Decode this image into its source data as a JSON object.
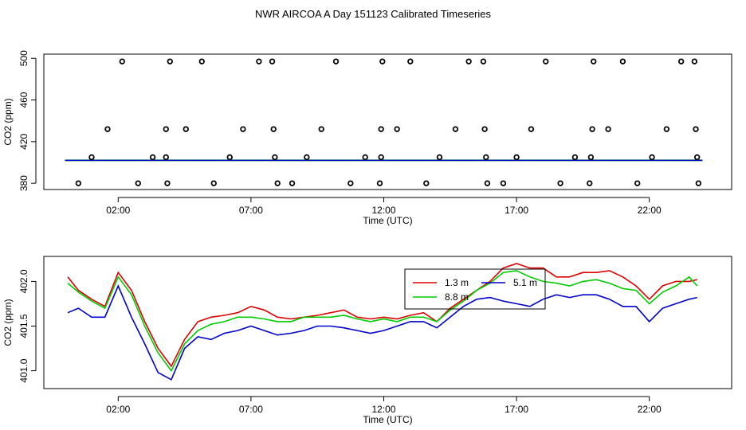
{
  "title": "NWR AIRCOA A  Day 151123  Calibrated Timeseries",
  "colors": {
    "red": "#dd0000",
    "green": "#00cc00",
    "blue": "#0000cc",
    "axis": "#000000"
  },
  "chart_data": [
    {
      "type": "scatter",
      "xlabel": "Time (UTC)",
      "ylabel": "CO2 (ppm)",
      "xlim": [
        -0.8,
        25.1
      ],
      "ylim": [
        374,
        504
      ],
      "xticks": [
        2,
        7,
        12,
        17,
        22
      ],
      "xtick_labels": [
        "02:00",
        "07:00",
        "12:00",
        "17:00",
        "22:00"
      ],
      "yticks": [
        380,
        420,
        460,
        500
      ],
      "ytick_labels": [
        "380",
        "420",
        "460",
        "500"
      ],
      "points": [
        {
          "x": 0.5,
          "y": 380
        },
        {
          "x": 1.0,
          "y": 405
        },
        {
          "x": 1.6,
          "y": 432
        },
        {
          "x": 2.15,
          "y": 497
        },
        {
          "x": 2.75,
          "y": 380
        },
        {
          "x": 3.3,
          "y": 405
        },
        {
          "x": 3.8,
          "y": 405
        },
        {
          "x": 3.8,
          "y": 432
        },
        {
          "x": 3.95,
          "y": 497
        },
        {
          "x": 3.85,
          "y": 380
        },
        {
          "x": 4.55,
          "y": 432
        },
        {
          "x": 5.15,
          "y": 497
        },
        {
          "x": 5.6,
          "y": 380
        },
        {
          "x": 6.2,
          "y": 405
        },
        {
          "x": 6.7,
          "y": 432
        },
        {
          "x": 7.3,
          "y": 497
        },
        {
          "x": 7.8,
          "y": 497
        },
        {
          "x": 7.85,
          "y": 432
        },
        {
          "x": 7.9,
          "y": 405
        },
        {
          "x": 8.0,
          "y": 380
        },
        {
          "x": 8.55,
          "y": 380
        },
        {
          "x": 9.1,
          "y": 405
        },
        {
          "x": 9.65,
          "y": 432
        },
        {
          "x": 10.2,
          "y": 497
        },
        {
          "x": 10.75,
          "y": 380
        },
        {
          "x": 11.3,
          "y": 405
        },
        {
          "x": 11.85,
          "y": 380
        },
        {
          "x": 11.9,
          "y": 405
        },
        {
          "x": 11.9,
          "y": 432
        },
        {
          "x": 11.95,
          "y": 497
        },
        {
          "x": 12.5,
          "y": 432
        },
        {
          "x": 13.0,
          "y": 497
        },
        {
          "x": 13.6,
          "y": 380
        },
        {
          "x": 14.1,
          "y": 405
        },
        {
          "x": 14.7,
          "y": 432
        },
        {
          "x": 15.2,
          "y": 497
        },
        {
          "x": 15.75,
          "y": 497
        },
        {
          "x": 15.8,
          "y": 432
        },
        {
          "x": 15.85,
          "y": 405
        },
        {
          "x": 15.9,
          "y": 380
        },
        {
          "x": 16.5,
          "y": 380
        },
        {
          "x": 17.0,
          "y": 405
        },
        {
          "x": 17.55,
          "y": 432
        },
        {
          "x": 18.1,
          "y": 497
        },
        {
          "x": 18.65,
          "y": 380
        },
        {
          "x": 19.2,
          "y": 405
        },
        {
          "x": 19.75,
          "y": 380
        },
        {
          "x": 19.8,
          "y": 405
        },
        {
          "x": 19.85,
          "y": 432
        },
        {
          "x": 19.9,
          "y": 497
        },
        {
          "x": 20.45,
          "y": 432
        },
        {
          "x": 21.0,
          "y": 497
        },
        {
          "x": 21.55,
          "y": 380
        },
        {
          "x": 22.1,
          "y": 405
        },
        {
          "x": 22.65,
          "y": 432
        },
        {
          "x": 23.2,
          "y": 497
        },
        {
          "x": 23.7,
          "y": 497
        },
        {
          "x": 23.75,
          "y": 432
        },
        {
          "x": 23.8,
          "y": 405
        },
        {
          "x": 23.85,
          "y": 380
        }
      ],
      "baseline": {
        "x": [
          0.0,
          24.0
        ],
        "y": [
          402.0,
          402.0
        ]
      }
    },
    {
      "type": "line",
      "xlabel": "Time (UTC)",
      "ylabel": "CO2 (ppm)",
      "xlim": [
        -0.8,
        25.1
      ],
      "ylim": [
        400.8,
        402.28
      ],
      "xticks": [
        2,
        7,
        12,
        17,
        22
      ],
      "xtick_labels": [
        "02:00",
        "07:00",
        "12:00",
        "17:00",
        "22:00"
      ],
      "yticks": [
        401.0,
        401.5,
        402.0
      ],
      "ytick_labels": [
        "401.0",
        "401.5",
        "402.0"
      ],
      "legend": [
        "1.3 m",
        "5.1 m",
        "8.8 m"
      ],
      "legend_position": "top-right",
      "series": [
        {
          "name": "1.3 m",
          "color": "#dd0000",
          "x": [
            0.1,
            0.5,
            1.0,
            1.5,
            2.0,
            2.5,
            3.0,
            3.5,
            4.0,
            4.5,
            5.0,
            5.5,
            6.0,
            6.5,
            7.0,
            7.5,
            8.0,
            8.5,
            9.0,
            9.5,
            10.0,
            10.5,
            11.0,
            11.5,
            12.0,
            12.5,
            13.0,
            13.5,
            14.0,
            14.5,
            15.0,
            15.5,
            16.0,
            16.5,
            17.0,
            17.5,
            18.0,
            18.5,
            19.0,
            19.5,
            20.0,
            20.5,
            21.0,
            21.5,
            22.0,
            22.5,
            23.0,
            23.5,
            23.8
          ],
          "values": [
            402.05,
            401.9,
            401.8,
            401.72,
            402.1,
            401.9,
            401.55,
            401.25,
            401.05,
            401.35,
            401.55,
            401.6,
            401.62,
            401.65,
            401.72,
            401.68,
            401.6,
            401.58,
            401.6,
            401.62,
            401.65,
            401.68,
            401.6,
            401.58,
            401.6,
            401.58,
            401.62,
            401.65,
            401.55,
            401.7,
            401.8,
            401.9,
            402.0,
            402.15,
            402.2,
            402.15,
            402.15,
            402.05,
            402.05,
            402.1,
            402.1,
            402.12,
            402.05,
            401.95,
            401.8,
            401.95,
            402.0,
            402.0,
            402.02
          ]
        },
        {
          "name": "8.8 m",
          "color": "#00cc00",
          "x": [
            0.1,
            0.5,
            1.0,
            1.5,
            2.0,
            2.5,
            3.0,
            3.5,
            4.0,
            4.5,
            5.0,
            5.5,
            6.0,
            6.5,
            7.0,
            7.5,
            8.0,
            8.5,
            9.0,
            9.5,
            10.0,
            10.5,
            11.0,
            11.5,
            12.0,
            12.5,
            13.0,
            13.5,
            14.0,
            14.5,
            15.0,
            15.5,
            16.0,
            16.5,
            17.0,
            17.5,
            18.0,
            18.5,
            19.0,
            19.5,
            20.0,
            20.5,
            21.0,
            21.5,
            22.0,
            22.5,
            23.0,
            23.5,
            23.8
          ],
          "values": [
            401.98,
            401.88,
            401.78,
            401.7,
            402.05,
            401.85,
            401.5,
            401.2,
            401.0,
            401.3,
            401.45,
            401.52,
            401.55,
            401.6,
            401.6,
            401.58,
            401.55,
            401.55,
            401.6,
            401.6,
            401.6,
            401.62,
            401.58,
            401.55,
            401.58,
            401.55,
            401.6,
            401.6,
            401.55,
            401.68,
            401.78,
            401.9,
            401.98,
            402.1,
            402.12,
            402.05,
            402.0,
            401.98,
            401.95,
            402.0,
            402.02,
            401.98,
            401.92,
            401.9,
            401.75,
            401.88,
            401.95,
            402.05,
            401.95
          ]
        },
        {
          "name": "5.1 m",
          "color": "#0000cc",
          "x": [
            0.1,
            0.5,
            1.0,
            1.5,
            2.0,
            2.5,
            3.0,
            3.5,
            4.0,
            4.5,
            5.0,
            5.5,
            6.0,
            6.5,
            7.0,
            7.5,
            8.0,
            8.5,
            9.0,
            9.5,
            10.0,
            10.5,
            11.0,
            11.5,
            12.0,
            12.5,
            13.0,
            13.5,
            14.0,
            14.5,
            15.0,
            15.5,
            16.0,
            16.5,
            17.0,
            17.5,
            18.0,
            18.5,
            19.0,
            19.5,
            20.0,
            20.5,
            21.0,
            21.5,
            22.0,
            22.5,
            23.0,
            23.5,
            23.8
          ],
          "values": [
            401.65,
            401.7,
            401.6,
            401.6,
            401.95,
            401.6,
            401.3,
            400.98,
            400.9,
            401.25,
            401.38,
            401.35,
            401.42,
            401.45,
            401.5,
            401.45,
            401.4,
            401.42,
            401.45,
            401.5,
            401.5,
            401.48,
            401.45,
            401.42,
            401.45,
            401.5,
            401.55,
            401.55,
            401.48,
            401.6,
            401.72,
            401.8,
            401.82,
            401.78,
            401.75,
            401.72,
            401.8,
            401.85,
            401.82,
            401.85,
            401.85,
            401.8,
            401.72,
            401.72,
            401.55,
            401.7,
            401.75,
            401.8,
            401.82
          ]
        }
      ]
    }
  ]
}
